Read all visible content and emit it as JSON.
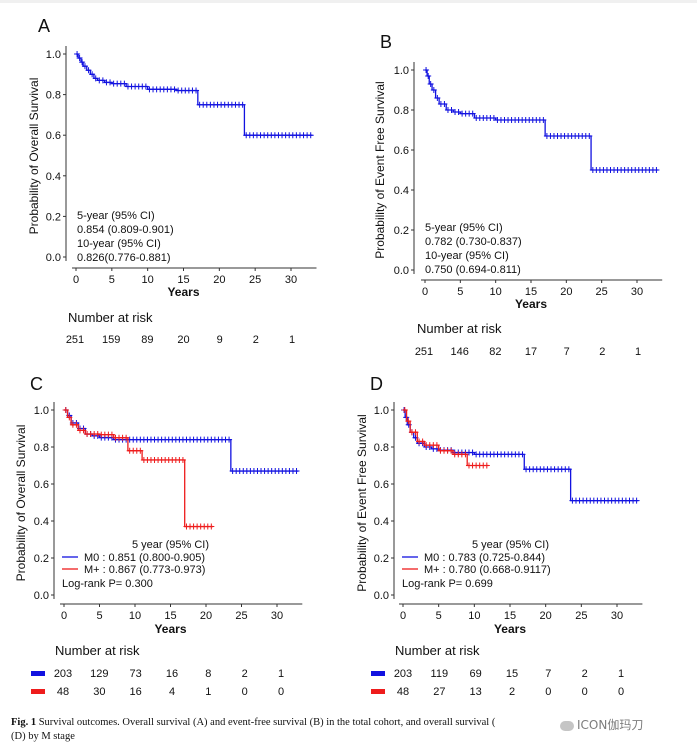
{
  "figure": {
    "caption_prefix": "Fig. 1",
    "caption_text": "Survival outcomes. Overall survival (A) and event-free survival (B) in the total cohort, and overall survival (",
    "caption_text_2": "(D) by M stage",
    "watermark": "ICON伽玛刀"
  },
  "colors": {
    "blue": "#1212e0",
    "red": "#ee1c1c",
    "black": "#111111"
  },
  "panels": [
    {
      "letter": "A",
      "ylabel": "Probability of Overall Survival",
      "xlabel": "Years",
      "xticks": [
        "0",
        "5",
        "10",
        "15",
        "20",
        "25",
        "30"
      ],
      "yticks": [
        "0.0",
        "0.2",
        "0.4",
        "0.6",
        "0.8",
        "1.0"
      ],
      "annotation": [
        "5-year (95% CI)",
        "0.854 (0.809-0.901)",
        "10-year (95% CI)",
        "0.826(0.776-0.881)"
      ],
      "risk_title": "Number at risk",
      "risk_rows": [
        [
          "251",
          "159",
          "89",
          "20",
          "9",
          "2",
          "1"
        ]
      ]
    },
    {
      "letter": "B",
      "ylabel": "Probability of Event Free Survival",
      "xlabel": "Years",
      "xticks": [
        "0",
        "5",
        "10",
        "15",
        "20",
        "25",
        "30"
      ],
      "yticks": [
        "0.0",
        "0.2",
        "0.4",
        "0.6",
        "0.8",
        "1.0"
      ],
      "annotation": [
        "5-year (95% CI)",
        "0.782 (0.730-0.837)",
        "10-year (95% CI)",
        "0.750 (0.694-0.811)"
      ],
      "risk_title": "Number at risk",
      "risk_rows": [
        [
          "251",
          "146",
          "82",
          "17",
          "7",
          "2",
          "1"
        ]
      ]
    },
    {
      "letter": "C",
      "ylabel": "Probability of Overall Survival",
      "xlabel": "Years",
      "xticks": [
        "0",
        "5",
        "10",
        "15",
        "20",
        "25",
        "30"
      ],
      "yticks": [
        "0.0",
        "0.2",
        "0.4",
        "0.6",
        "0.8",
        "1.0"
      ],
      "annotation_title": "5 year (95% CI)",
      "legend": [
        "M0 : 0.851 (0.800-0.905)",
        "M+ : 0.867 (0.773-0.973)"
      ],
      "logrank": "Log-rank P= 0.300",
      "risk_title": "Number at risk",
      "risk_rows": [
        [
          "203",
          "129",
          "73",
          "16",
          "8",
          "2",
          "1"
        ],
        [
          "48",
          "30",
          "16",
          "4",
          "1",
          "0",
          "0"
        ]
      ]
    },
    {
      "letter": "D",
      "ylabel": "Probability of Event Free Survival",
      "xlabel": "Years",
      "xticks": [
        "0",
        "5",
        "10",
        "15",
        "20",
        "25",
        "30"
      ],
      "yticks": [
        "0.0",
        "0.2",
        "0.4",
        "0.6",
        "0.8",
        "1.0"
      ],
      "annotation_title": "5 year (95% CI)",
      "legend": [
        "M0 : 0.783 (0.725-0.844)",
        "M+ : 0.780 (0.668-0.9117)"
      ],
      "logrank": "Log-rank P= 0.699",
      "risk_title": "Number at risk",
      "risk_rows": [
        [
          "203",
          "119",
          "69",
          "15",
          "7",
          "2",
          "1"
        ],
        [
          "48",
          "27",
          "13",
          "2",
          "0",
          "0",
          "0"
        ]
      ]
    }
  ],
  "chart_data": [
    {
      "type": "line",
      "title": "A",
      "xlabel": "Years",
      "ylabel": "Probability of Overall Survival",
      "xlim": [
        0,
        33
      ],
      "ylim": [
        0,
        1
      ],
      "series": [
        {
          "color": "#1212e0",
          "x": [
            0,
            0.3,
            0.7,
            1,
            1.5,
            2,
            2.5,
            3,
            4,
            5,
            7,
            10,
            14,
            17,
            23.5,
            33
          ],
          "y": [
            1.0,
            0.98,
            0.96,
            0.94,
            0.92,
            0.9,
            0.88,
            0.87,
            0.86,
            0.854,
            0.84,
            0.826,
            0.82,
            0.75,
            0.6,
            0.6
          ]
        }
      ]
    },
    {
      "type": "line",
      "title": "B",
      "xlabel": "Years",
      "ylabel": "Probability of Event Free Survival",
      "xlim": [
        0,
        33
      ],
      "ylim": [
        0,
        1
      ],
      "series": [
        {
          "color": "#1212e0",
          "x": [
            0,
            0.3,
            0.6,
            1,
            1.5,
            2,
            3,
            4,
            5,
            7,
            10,
            17,
            23.5,
            33
          ],
          "y": [
            1.0,
            0.97,
            0.93,
            0.9,
            0.86,
            0.83,
            0.8,
            0.79,
            0.782,
            0.76,
            0.75,
            0.67,
            0.5,
            0.5
          ]
        }
      ]
    },
    {
      "type": "line",
      "title": "C",
      "xlabel": "Years",
      "ylabel": "Probability of Overall Survival",
      "xlim": [
        0,
        33
      ],
      "ylim": [
        0,
        1
      ],
      "series": [
        {
          "name": "M0",
          "color": "#1212e0",
          "x": [
            0,
            0.5,
            1,
            2,
            3,
            4,
            5,
            7,
            10,
            15,
            20,
            23.5,
            33
          ],
          "y": [
            1.0,
            0.97,
            0.93,
            0.9,
            0.87,
            0.86,
            0.851,
            0.84,
            0.84,
            0.84,
            0.84,
            0.67,
            0.67
          ]
        },
        {
          "name": "M+",
          "color": "#ee1c1c",
          "x": [
            0,
            0.5,
            1,
            2,
            3,
            5,
            7,
            9,
            11,
            17,
            21
          ],
          "y": [
            1.0,
            0.96,
            0.92,
            0.89,
            0.87,
            0.867,
            0.85,
            0.78,
            0.73,
            0.37,
            0.37
          ]
        }
      ]
    },
    {
      "type": "line",
      "title": "D",
      "xlabel": "Years",
      "ylabel": "Probability of Event Free Survival",
      "xlim": [
        0,
        33
      ],
      "ylim": [
        0,
        1
      ],
      "series": [
        {
          "name": "M0",
          "color": "#1212e0",
          "x": [
            0,
            0.3,
            0.6,
            1,
            1.5,
            2,
            3,
            4,
            5,
            7,
            10,
            17,
            23.5,
            33
          ],
          "y": [
            1.0,
            0.96,
            0.92,
            0.88,
            0.85,
            0.82,
            0.8,
            0.79,
            0.783,
            0.77,
            0.76,
            0.68,
            0.51,
            0.51
          ]
        },
        {
          "name": "M+",
          "color": "#ee1c1c",
          "x": [
            0,
            0.5,
            1,
            2,
            3,
            5,
            7,
            9,
            12
          ],
          "y": [
            1.0,
            0.94,
            0.88,
            0.83,
            0.81,
            0.78,
            0.76,
            0.7,
            0.7
          ]
        }
      ]
    }
  ]
}
